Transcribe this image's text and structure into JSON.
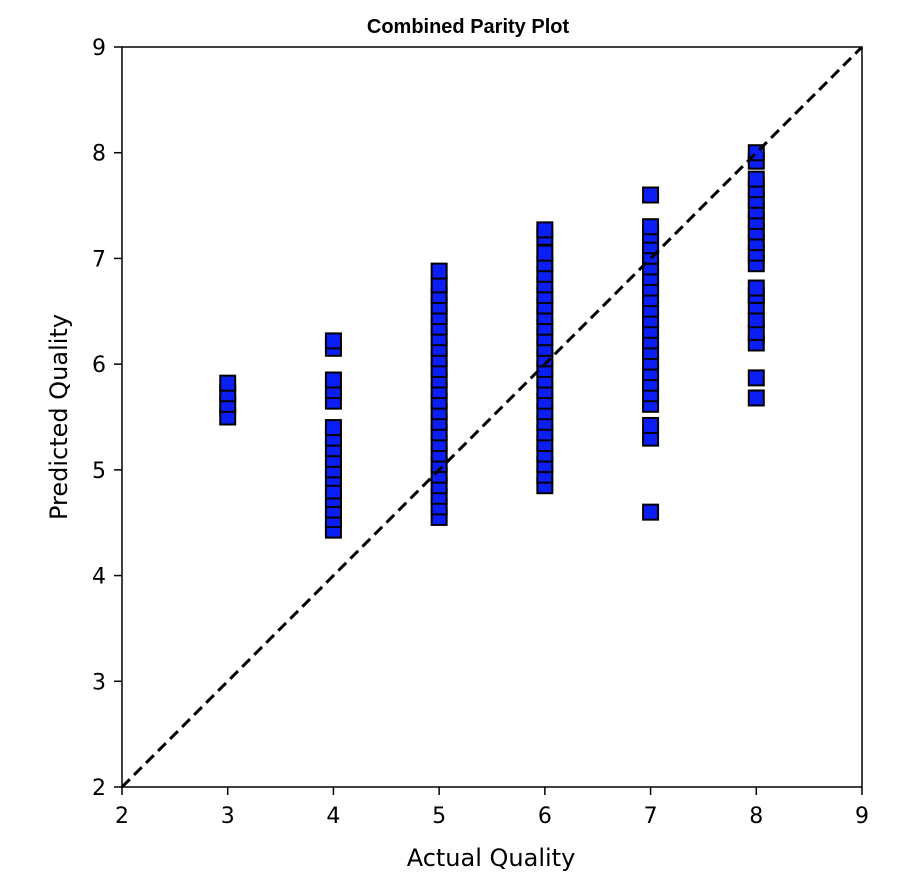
{
  "chart_data": {
    "type": "scatter",
    "title": "Combined Parity Plot",
    "xlabel": "Actual Quality",
    "ylabel": "Predicted Quality",
    "xlim": [
      2,
      9
    ],
    "ylim": [
      2,
      9
    ],
    "xticks": [
      "2",
      "3",
      "4",
      "5",
      "6",
      "7",
      "8",
      "9"
    ],
    "yticks": [
      "2",
      "3",
      "4",
      "5",
      "6",
      "7",
      "8",
      "9"
    ],
    "grid": false,
    "marker": "square",
    "marker_color": "#0a1ef5",
    "marker_edge_color": "#000000",
    "reference_line": {
      "style": "dashed",
      "color": "#000000",
      "from": [
        2,
        2
      ],
      "to": [
        9,
        9
      ]
    },
    "points": [
      {
        "x": 3,
        "y": 5.5
      },
      {
        "x": 3,
        "y": 5.62
      },
      {
        "x": 3,
        "y": 5.72
      },
      {
        "x": 3,
        "y": 5.82
      },
      {
        "x": 4,
        "y": 4.43
      },
      {
        "x": 4,
        "y": 4.53
      },
      {
        "x": 4,
        "y": 4.62
      },
      {
        "x": 4,
        "y": 4.72
      },
      {
        "x": 4,
        "y": 4.8
      },
      {
        "x": 4,
        "y": 4.92
      },
      {
        "x": 4,
        "y": 5.0
      },
      {
        "x": 4,
        "y": 5.1
      },
      {
        "x": 4,
        "y": 5.2
      },
      {
        "x": 4,
        "y": 5.3
      },
      {
        "x": 4,
        "y": 5.4
      },
      {
        "x": 4,
        "y": 5.65
      },
      {
        "x": 4,
        "y": 5.75
      },
      {
        "x": 4,
        "y": 5.85
      },
      {
        "x": 4,
        "y": 6.15
      },
      {
        "x": 4,
        "y": 6.22
      },
      {
        "x": 5,
        "y": 4.55
      },
      {
        "x": 5,
        "y": 4.65
      },
      {
        "x": 5,
        "y": 4.75
      },
      {
        "x": 5,
        "y": 4.85
      },
      {
        "x": 5,
        "y": 4.95
      },
      {
        "x": 5,
        "y": 5.05
      },
      {
        "x": 5,
        "y": 5.15
      },
      {
        "x": 5,
        "y": 5.25
      },
      {
        "x": 5,
        "y": 5.35
      },
      {
        "x": 5,
        "y": 5.45
      },
      {
        "x": 5,
        "y": 5.55
      },
      {
        "x": 5,
        "y": 5.65
      },
      {
        "x": 5,
        "y": 5.75
      },
      {
        "x": 5,
        "y": 5.85
      },
      {
        "x": 5,
        "y": 5.95
      },
      {
        "x": 5,
        "y": 6.05
      },
      {
        "x": 5,
        "y": 6.15
      },
      {
        "x": 5,
        "y": 6.25
      },
      {
        "x": 5,
        "y": 6.35
      },
      {
        "x": 5,
        "y": 6.45
      },
      {
        "x": 5,
        "y": 6.55
      },
      {
        "x": 5,
        "y": 6.65
      },
      {
        "x": 5,
        "y": 6.75
      },
      {
        "x": 5,
        "y": 6.88
      },
      {
        "x": 6,
        "y": 4.85
      },
      {
        "x": 6,
        "y": 4.95
      },
      {
        "x": 6,
        "y": 5.05
      },
      {
        "x": 6,
        "y": 5.15
      },
      {
        "x": 6,
        "y": 5.25
      },
      {
        "x": 6,
        "y": 5.35
      },
      {
        "x": 6,
        "y": 5.45
      },
      {
        "x": 6,
        "y": 5.55
      },
      {
        "x": 6,
        "y": 5.65
      },
      {
        "x": 6,
        "y": 5.75
      },
      {
        "x": 6,
        "y": 5.85
      },
      {
        "x": 6,
        "y": 5.95
      },
      {
        "x": 6,
        "y": 6.05
      },
      {
        "x": 6,
        "y": 6.15
      },
      {
        "x": 6,
        "y": 6.25
      },
      {
        "x": 6,
        "y": 6.35
      },
      {
        "x": 6,
        "y": 6.45
      },
      {
        "x": 6,
        "y": 6.55
      },
      {
        "x": 6,
        "y": 6.65
      },
      {
        "x": 6,
        "y": 6.75
      },
      {
        "x": 6,
        "y": 6.85
      },
      {
        "x": 6,
        "y": 6.95
      },
      {
        "x": 6,
        "y": 7.05
      },
      {
        "x": 6,
        "y": 7.2
      },
      {
        "x": 6,
        "y": 7.27
      },
      {
        "x": 7,
        "y": 4.6
      },
      {
        "x": 7,
        "y": 5.3
      },
      {
        "x": 7,
        "y": 5.42
      },
      {
        "x": 7,
        "y": 5.62
      },
      {
        "x": 7,
        "y": 5.72
      },
      {
        "x": 7,
        "y": 5.82
      },
      {
        "x": 7,
        "y": 5.92
      },
      {
        "x": 7,
        "y": 6.02
      },
      {
        "x": 7,
        "y": 6.12
      },
      {
        "x": 7,
        "y": 6.22
      },
      {
        "x": 7,
        "y": 6.32
      },
      {
        "x": 7,
        "y": 6.42
      },
      {
        "x": 7,
        "y": 6.52
      },
      {
        "x": 7,
        "y": 6.62
      },
      {
        "x": 7,
        "y": 6.72
      },
      {
        "x": 7,
        "y": 6.82
      },
      {
        "x": 7,
        "y": 6.92
      },
      {
        "x": 7,
        "y": 7.02
      },
      {
        "x": 7,
        "y": 7.12
      },
      {
        "x": 7,
        "y": 7.22
      },
      {
        "x": 7,
        "y": 7.3
      },
      {
        "x": 7,
        "y": 7.6
      },
      {
        "x": 8,
        "y": 5.68
      },
      {
        "x": 8,
        "y": 5.87
      },
      {
        "x": 8,
        "y": 6.2
      },
      {
        "x": 8,
        "y": 6.3
      },
      {
        "x": 8,
        "y": 6.42
      },
      {
        "x": 8,
        "y": 6.55
      },
      {
        "x": 8,
        "y": 6.65
      },
      {
        "x": 8,
        "y": 6.72
      },
      {
        "x": 8,
        "y": 6.95
      },
      {
        "x": 8,
        "y": 7.05
      },
      {
        "x": 8,
        "y": 7.15
      },
      {
        "x": 8,
        "y": 7.25
      },
      {
        "x": 8,
        "y": 7.35
      },
      {
        "x": 8,
        "y": 7.45
      },
      {
        "x": 8,
        "y": 7.55
      },
      {
        "x": 8,
        "y": 7.65
      },
      {
        "x": 8,
        "y": 7.75
      },
      {
        "x": 8,
        "y": 7.92
      },
      {
        "x": 8,
        "y": 8.0
      }
    ]
  }
}
